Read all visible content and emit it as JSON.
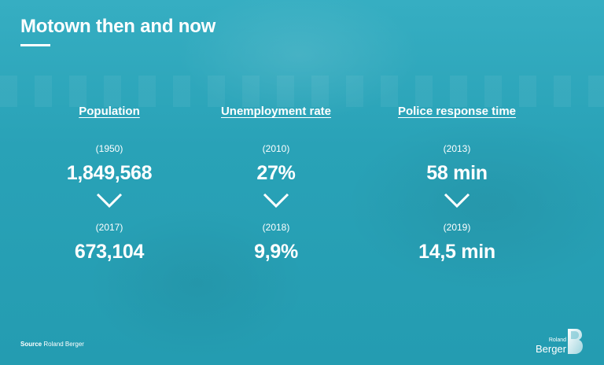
{
  "title": "Motown then and now",
  "metrics": [
    {
      "label": "Population",
      "before": {
        "period": "(1950)",
        "value": "1,849,568"
      },
      "after": {
        "period": "(2017)",
        "value": "673,104"
      }
    },
    {
      "label": "Unemployment rate",
      "before": {
        "period": "(2010)",
        "value": "27%"
      },
      "after": {
        "period": "(2018)",
        "value": "9,9%"
      }
    },
    {
      "label": "Police response time",
      "before": {
        "period": "(2013)",
        "value": "58 min"
      },
      "after": {
        "period": "(2019)",
        "value": "14,5 min"
      }
    }
  ],
  "source": {
    "prefix": "Source",
    "text": "Roland Berger"
  },
  "logo": {
    "line1": "Roland",
    "line2": "Berger"
  },
  "colors": {
    "background": "#2aa3b8",
    "text": "#ffffff"
  },
  "icons": {
    "arrow": "chevron-down-icon",
    "logo_mark": "roland-berger-logo-icon"
  }
}
